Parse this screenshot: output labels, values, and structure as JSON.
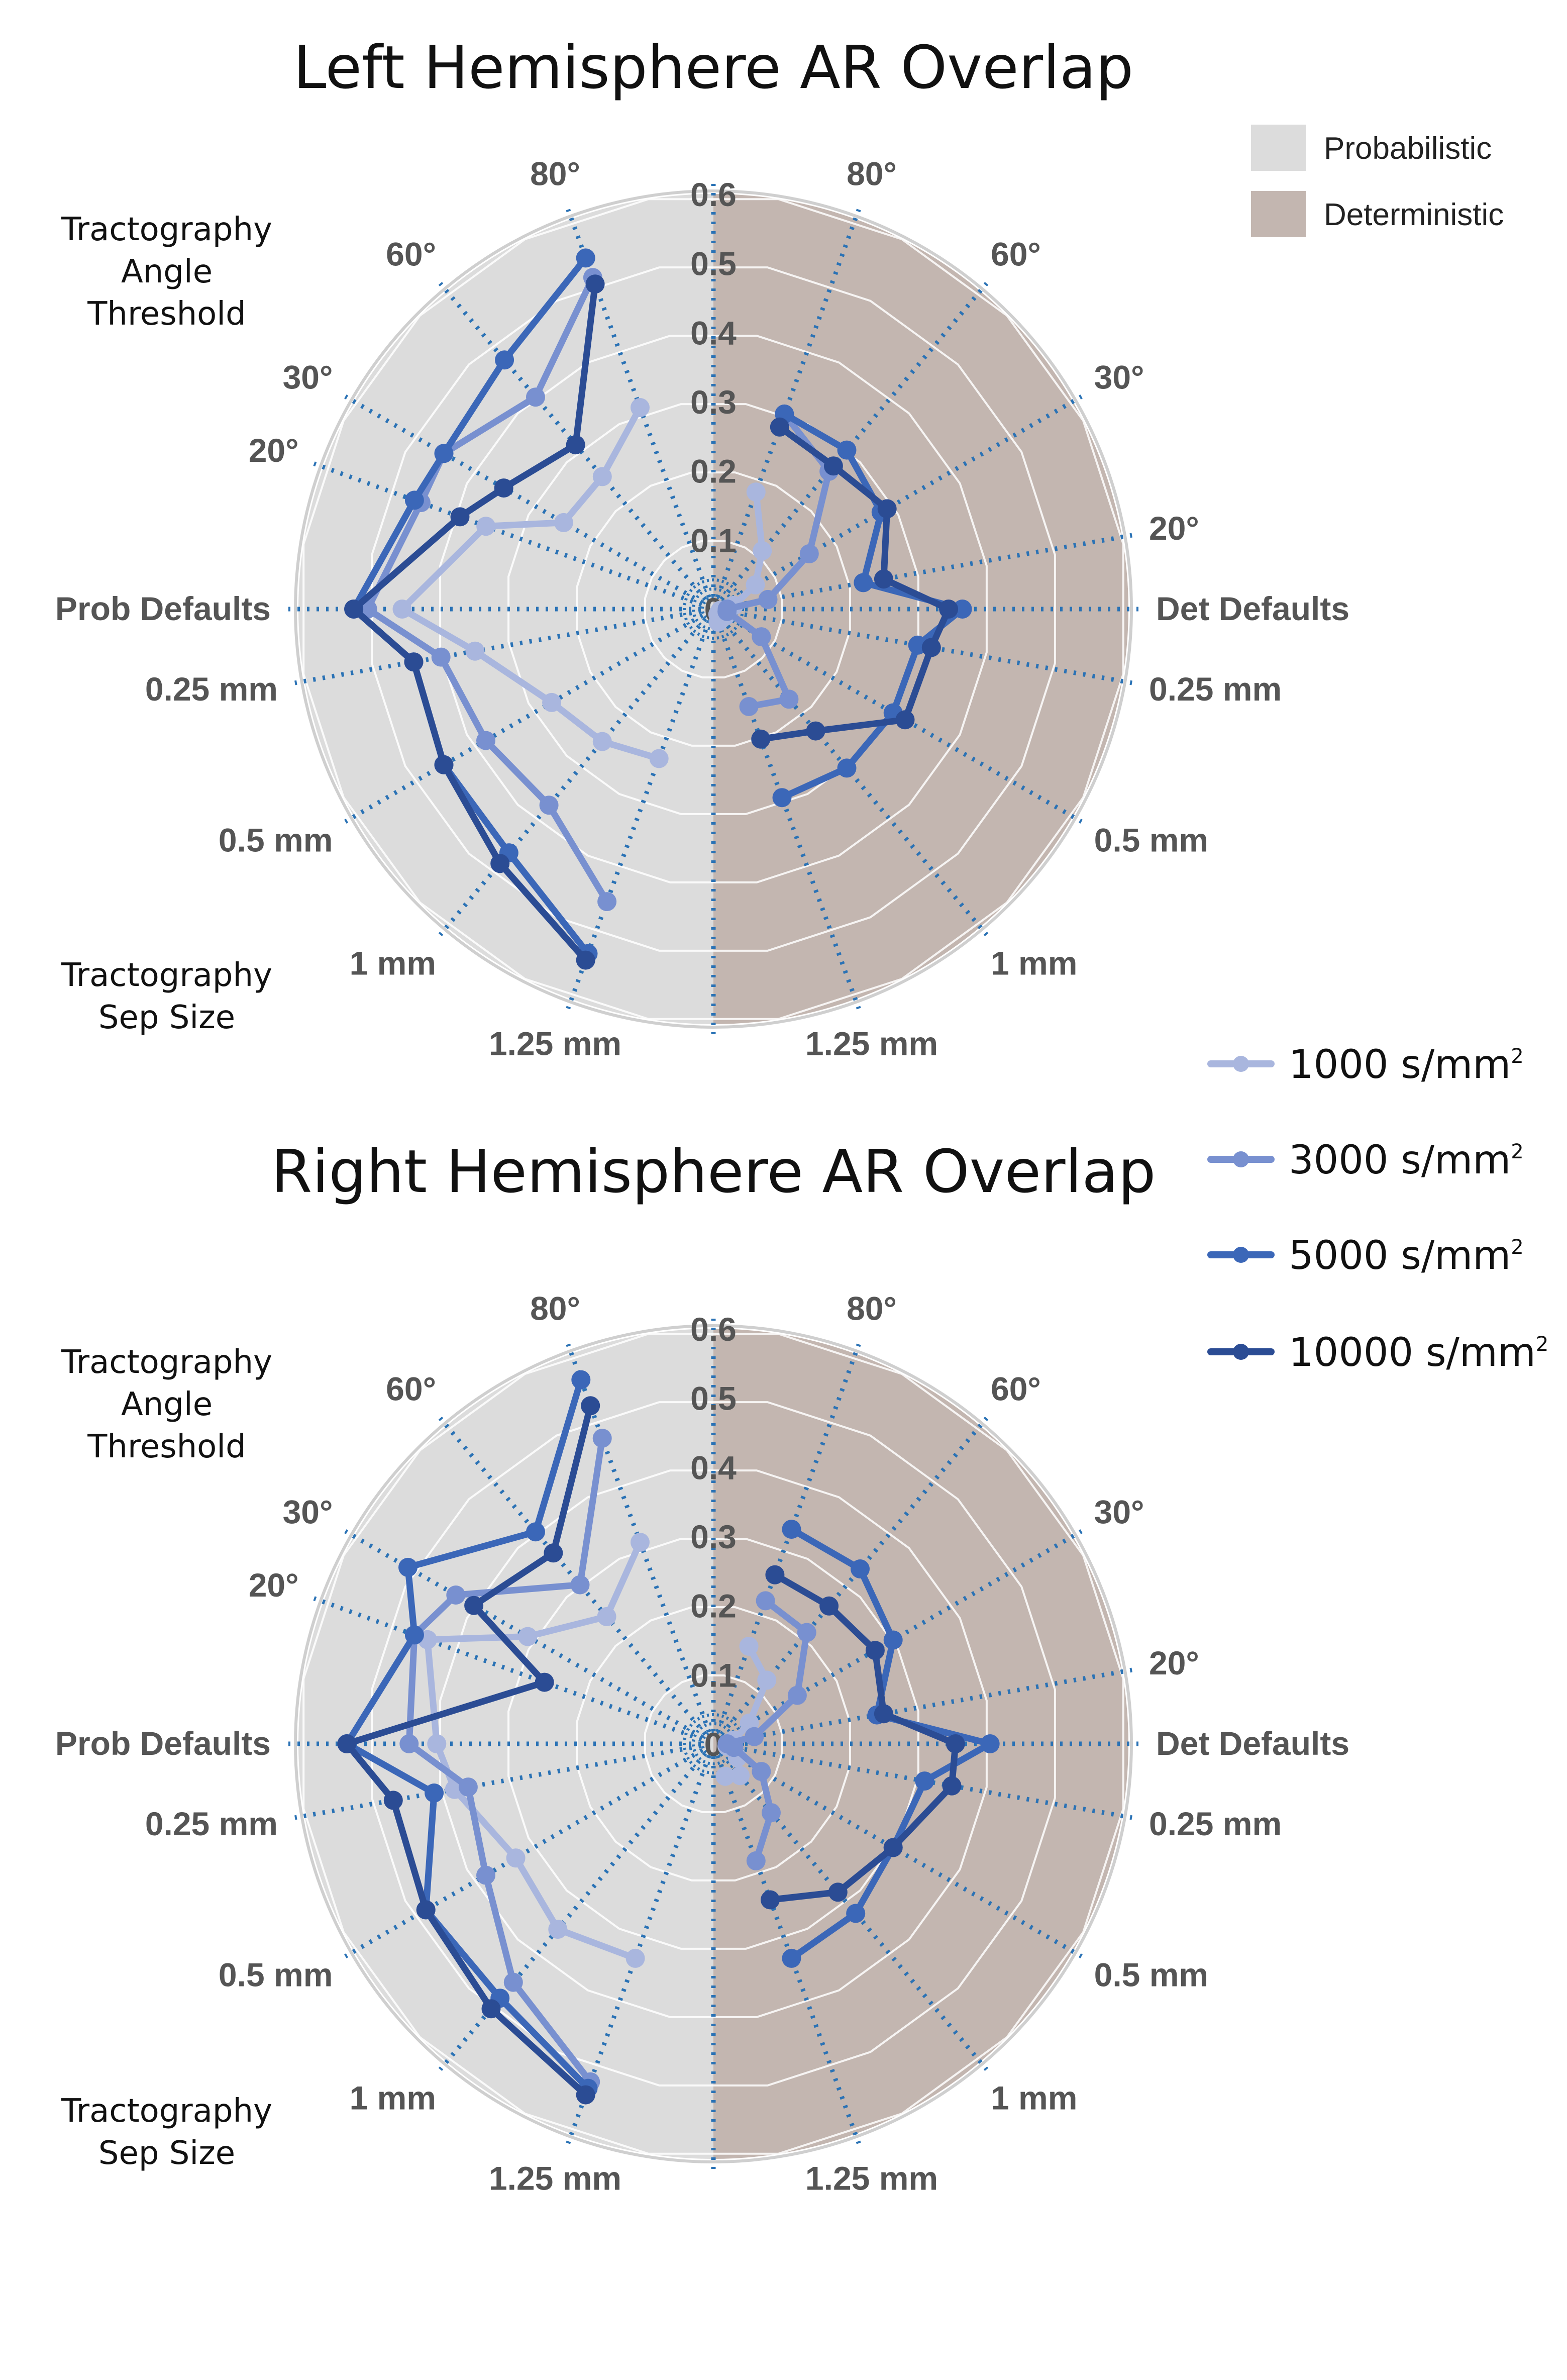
{
  "legend_regions": [
    {
      "label": "Probabilistic",
      "color": "#dcdcdc"
    },
    {
      "label": "Deterministic",
      "color": "#c3b6b0"
    }
  ],
  "series_legend": [
    {
      "name": "1000 s/mm",
      "sup": "2",
      "color": "#a9b6de"
    },
    {
      "name": "3000 s/mm",
      "sup": "2",
      "color": "#7890d0"
    },
    {
      "name": "5000 s/mm",
      "sup": "2",
      "color": "#3b67b8"
    },
    {
      "name": "10000 s/mm",
      "sup": "2",
      "color": "#2b4c94"
    }
  ],
  "side_labels": {
    "angle": [
      "Tractography",
      "Angle",
      "Threshold"
    ],
    "sep": [
      "Tractography",
      "Sep Size"
    ]
  },
  "axis_labels": {
    "left": [
      "1.25 mm",
      "1 mm",
      "0.5 mm",
      "0.25 mm",
      "Prob Defaults",
      "20°",
      "30°",
      "60°",
      "80°"
    ],
    "right": [
      "80°",
      "60°",
      "30°",
      "20°",
      "Det Defaults",
      "0.25 mm",
      "0.5 mm",
      "1 mm",
      "1.25 mm"
    ]
  },
  "chart_data": [
    {
      "type": "polar-line",
      "title": "Left Hemisphere AR Overlap",
      "radial_ticks": [
        "0",
        "0.1",
        "0.2",
        "0.3",
        "0.4",
        "0.5",
        "0.6"
      ],
      "rlim": [
        0,
        0.6
      ],
      "categories_left_ccw_from_bottom": [
        "1.25 mm",
        "1 mm",
        "0.5 mm",
        "0.25 mm",
        "Prob Defaults",
        "20°",
        "30°",
        "60°",
        "80°"
      ],
      "categories_right_cw_from_top": [
        "80°",
        "60°",
        "30°",
        "20°",
        "Det Defaults",
        "0.25 mm",
        "0.5 mm",
        "1 mm",
        "1.25 mm"
      ],
      "series": [
        {
          "name": "1000 s/mm2",
          "prob": [
            0.23,
            0.25,
            0.27,
            0.35,
            0.45,
            0.35,
            0.25,
            0.25,
            0.31
          ],
          "det": [
            0.18,
            0.11,
            0.07,
            0.03,
            0.02,
            0.01,
            0.02,
            0.01,
            0.02
          ]
        },
        {
          "name": "3000 s/mm2",
          "prob": [
            0.45,
            0.37,
            0.38,
            0.4,
            0.5,
            0.45,
            0.45,
            0.4,
            0.51
          ],
          "det": [
            0.3,
            0.26,
            0.16,
            0.08,
            0.02,
            0.02,
            0.08,
            0.17,
            0.15
          ]
        },
        {
          "name": "5000 s/mm2",
          "prob": [
            0.53,
            0.46,
            0.45,
            0.44,
            0.52,
            0.46,
            0.45,
            0.47,
            0.54
          ],
          "det": [
            0.3,
            0.3,
            0.28,
            0.22,
            0.36,
            0.3,
            0.3,
            0.3,
            0.29
          ]
        },
        {
          "name": "10000 s/mm2",
          "prob": [
            0.54,
            0.48,
            0.45,
            0.44,
            0.52,
            0.39,
            0.35,
            0.31,
            0.5
          ],
          "det": [
            0.28,
            0.27,
            0.29,
            0.25,
            0.34,
            0.32,
            0.32,
            0.23,
            0.2
          ]
        }
      ]
    },
    {
      "type": "polar-line",
      "title": "Right Hemisphere AR Overlap",
      "radial_ticks": [
        "0",
        "0.1",
        "0.2",
        "0.3",
        "0.4",
        "0.5",
        "0.6"
      ],
      "rlim": [
        0,
        0.6
      ],
      "categories_left_ccw_from_bottom": [
        "1.25 mm",
        "1 mm",
        "0.5 mm",
        "0.25 mm",
        "Prob Defaults",
        "20°",
        "30°",
        "60°",
        "80°"
      ],
      "categories_right_cw_from_top": [
        "80°",
        "60°",
        "30°",
        "20°",
        "Det Defaults",
        "0.25 mm",
        "0.5 mm",
        "1 mm",
        "1.25 mm"
      ],
      "series": [
        {
          "name": "1000 s/mm2",
          "prob": [
            0.33,
            0.35,
            0.33,
            0.38,
            0.4,
            0.44,
            0.31,
            0.24,
            0.31
          ],
          "det": [
            0.15,
            0.12,
            0.06,
            0.03,
            0.02,
            0.02,
            0.04,
            0.06,
            0.05
          ]
        },
        {
          "name": "3000 s/mm2",
          "prob": [
            0.52,
            0.45,
            0.38,
            0.36,
            0.44,
            0.46,
            0.43,
            0.3,
            0.47
          ],
          "det": [
            0.22,
            0.21,
            0.14,
            0.06,
            0.02,
            0.03,
            0.08,
            0.13,
            0.18
          ]
        },
        {
          "name": "5000 s/mm2",
          "prob": [
            0.53,
            0.48,
            0.48,
            0.41,
            0.53,
            0.46,
            0.51,
            0.4,
            0.56
          ],
          "det": [
            0.33,
            0.33,
            0.3,
            0.24,
            0.4,
            0.31,
            0.3,
            0.32,
            0.33
          ]
        },
        {
          "name": "10000 s/mm2",
          "prob": [
            0.54,
            0.5,
            0.48,
            0.47,
            0.53,
            0.26,
            0.4,
            0.36,
            0.52
          ],
          "det": [
            0.26,
            0.26,
            0.27,
            0.25,
            0.35,
            0.35,
            0.3,
            0.28,
            0.24
          ]
        }
      ]
    }
  ]
}
